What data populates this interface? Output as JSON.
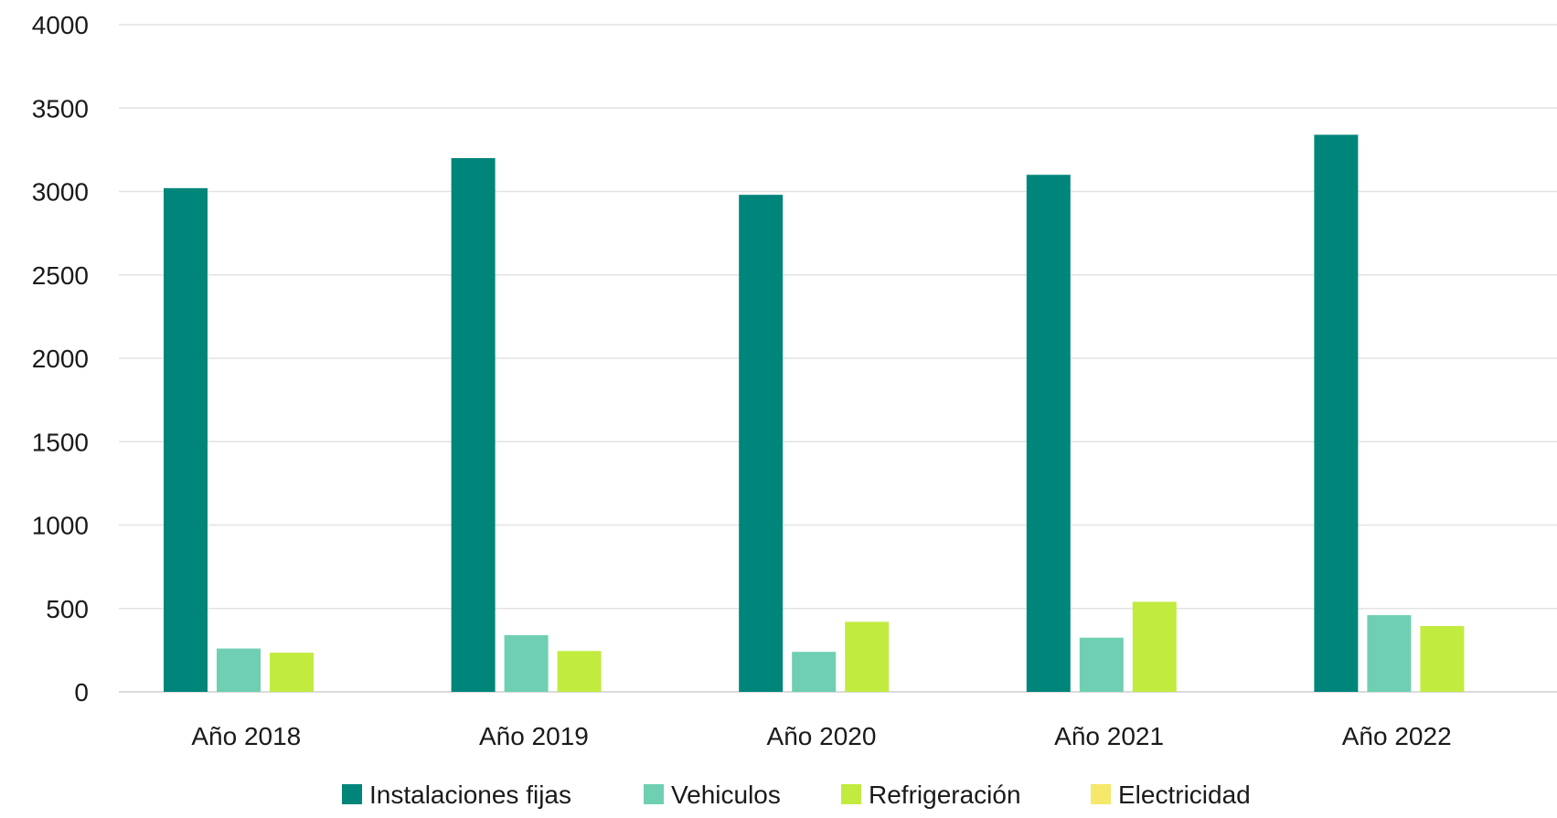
{
  "chart_data": {
    "type": "bar",
    "title": "",
    "xlabel": "",
    "ylabel": "",
    "ylim": [
      0,
      4000
    ],
    "yticks": [
      0,
      500,
      1000,
      1500,
      2000,
      2500,
      3000,
      3500,
      4000
    ],
    "grid": true,
    "legend_position": "bottom",
    "categories": [
      "Año 2018",
      "Año 2019",
      "Año 2020",
      "Año 2021",
      "Año 2022"
    ],
    "series": [
      {
        "name": "Instalaciones fijas",
        "color": "#00857A",
        "values": [
          3020,
          3200,
          2980,
          3100,
          3340
        ]
      },
      {
        "name": "Vehiculos",
        "color": "#6FCFB3",
        "values": [
          260,
          340,
          240,
          325,
          460
        ]
      },
      {
        "name": "Refrigeración",
        "color": "#C1EB3F",
        "values": [
          235,
          245,
          420,
          540,
          395
        ]
      },
      {
        "name": "Electricidad",
        "color": "#F5E86A",
        "values": [
          0,
          0,
          0,
          0,
          0
        ]
      }
    ]
  }
}
